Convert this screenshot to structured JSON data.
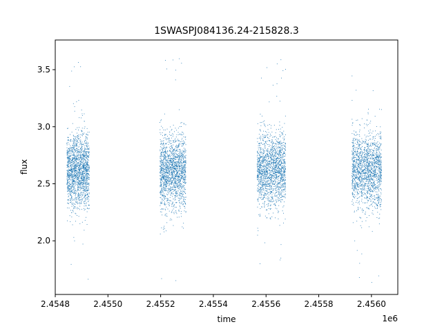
{
  "chart_data": {
    "type": "scatter",
    "title": "1SWASPJ084136.24-215828.3",
    "xlabel": "time",
    "ylabel": "flux",
    "x_offset_label": "1e6",
    "xlim": [
      2454800,
      2456100
    ],
    "ylim": [
      1.53,
      3.76
    ],
    "xticks": [
      2454800,
      2455000,
      2455200,
      2455400,
      2455600,
      2455800,
      2456000
    ],
    "xtick_labels": [
      "2.4548",
      "2.4550",
      "2.4552",
      "2.4554",
      "2.4556",
      "2.4558",
      "2.4560"
    ],
    "yticks": [
      2.0,
      2.5,
      3.0,
      3.5
    ],
    "ytick_labels": [
      "2.0",
      "2.5",
      "3.0",
      "3.5"
    ],
    "grid": false,
    "marker_color": "#1f77b4",
    "series": [
      {
        "clusters": [
          {
            "x_start": 2454843,
            "x_end": 2454928,
            "center": 2.62,
            "spread": 0.16,
            "min": 1.63,
            "max": 3.65
          },
          {
            "x_start": 2455196,
            "x_end": 2455295,
            "center": 2.61,
            "spread": 0.16,
            "min": 1.65,
            "max": 3.65
          },
          {
            "x_start": 2455565,
            "x_end": 2455673,
            "center": 2.63,
            "spread": 0.16,
            "min": 1.62,
            "max": 3.66
          },
          {
            "x_start": 2455925,
            "x_end": 2456037,
            "center": 2.62,
            "spread": 0.16,
            "min": 1.63,
            "max": 3.55
          }
        ]
      }
    ]
  }
}
